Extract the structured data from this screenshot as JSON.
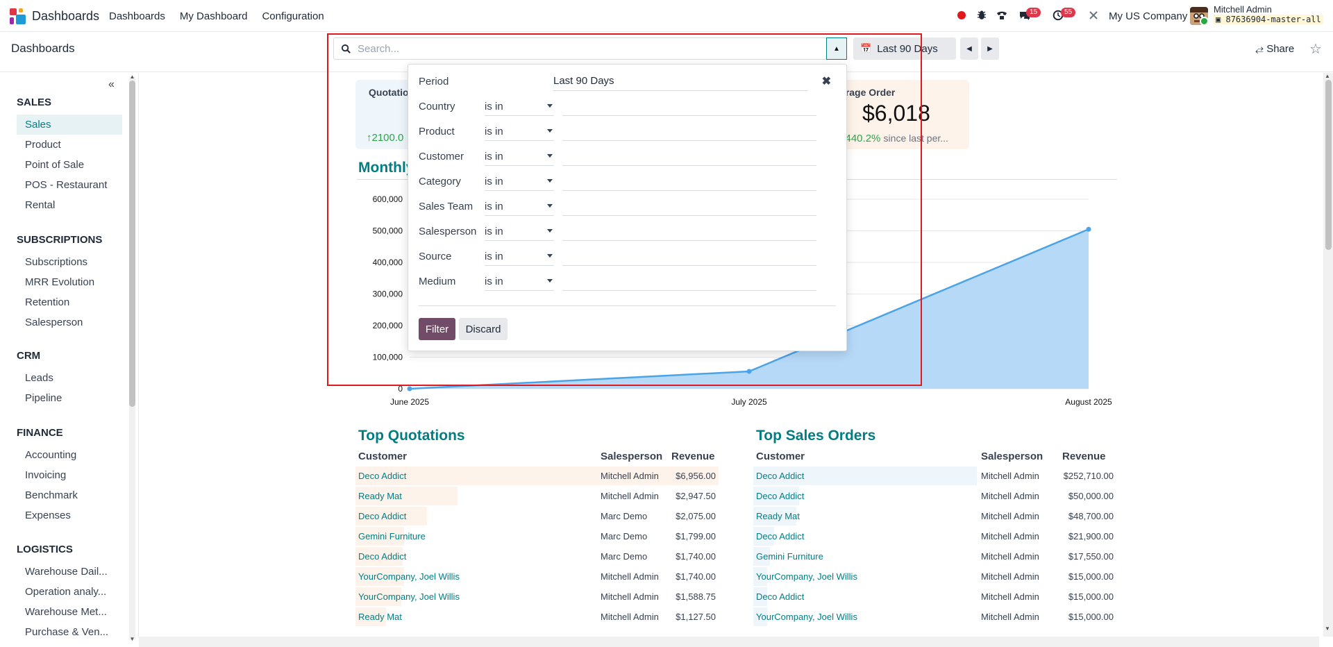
{
  "navbar": {
    "brand": "Dashboards",
    "menu": [
      "Dashboards",
      "My Dashboard",
      "Configuration"
    ],
    "messages_badge": "15",
    "activities_badge": "55",
    "company": "My US Company",
    "user_name": "Mitchell Admin",
    "database": "87636904-master-all"
  },
  "control_panel": {
    "breadcrumb": "Dashboards",
    "search_placeholder": "Search...",
    "period_label": "Last 90 Days",
    "share_label": "Share"
  },
  "sidebar": {
    "sections": [
      {
        "title": "SALES",
        "items": [
          "Sales",
          "Product",
          "Point of Sale",
          "POS - Restaurant",
          "Rental"
        ]
      },
      {
        "title": "SUBSCRIPTIONS",
        "items": [
          "Subscriptions",
          "MRR Evolution",
          "Retention",
          "Salesperson"
        ]
      },
      {
        "title": "CRM",
        "items": [
          "Leads",
          "Pipeline"
        ]
      },
      {
        "title": "FINANCE",
        "items": [
          "Accounting",
          "Invoicing",
          "Benchmark",
          "Expenses"
        ]
      },
      {
        "title": "LOGISTICS",
        "items": [
          "Warehouse Dail...",
          "Operation analy...",
          "Warehouse Met...",
          "Purchase & Ven..."
        ]
      }
    ],
    "active_item": "Sales"
  },
  "kpis": {
    "quotations": {
      "title": "Quotatio",
      "trend": "2100.0"
    },
    "average_order": {
      "title": "erage Order",
      "value": "$6,018",
      "trend": "440.2%",
      "since": "since last per..."
    }
  },
  "chart_title": "Monthly",
  "chart_data": {
    "type": "area",
    "x": [
      "June 2025",
      "July 2025",
      "August 2025"
    ],
    "series": [
      {
        "values": [
          0,
          55000,
          505000
        ]
      }
    ],
    "yticks": [
      "600,000",
      "500,000",
      "400,000",
      "300,000",
      "200,000",
      "100,000",
      "0"
    ],
    "ylim": [
      0,
      600000
    ],
    "grid": true,
    "colors": {
      "line": "#4ba3e8",
      "fill": "#b6d9f7"
    }
  },
  "top_quotations": {
    "title": "Top Quotations",
    "headers": [
      "Customer",
      "Salesperson",
      "Revenue"
    ],
    "rows": [
      {
        "customer": "Deco Addict",
        "salesperson": "Mitchell Admin",
        "revenue": "$6,956.00"
      },
      {
        "customer": "Ready Mat",
        "salesperson": "Mitchell Admin",
        "revenue": "$2,947.50"
      },
      {
        "customer": "Deco Addict",
        "salesperson": "Marc Demo",
        "revenue": "$2,075.00"
      },
      {
        "customer": "Gemini Furniture",
        "salesperson": "Marc Demo",
        "revenue": "$1,799.00"
      },
      {
        "customer": "Deco Addict",
        "salesperson": "Marc Demo",
        "revenue": "$1,740.00"
      },
      {
        "customer": "YourCompany, Joel Willis",
        "salesperson": "Mitchell Admin",
        "revenue": "$1,740.00"
      },
      {
        "customer": "YourCompany, Joel Willis",
        "salesperson": "Mitchell Admin",
        "revenue": "$1,588.75"
      },
      {
        "customer": "Ready Mat",
        "salesperson": "Mitchell Admin",
        "revenue": "$1,127.50"
      }
    ]
  },
  "top_sales_orders": {
    "title": "Top Sales Orders",
    "headers": [
      "Customer",
      "Salesperson",
      "Revenue"
    ],
    "rows": [
      {
        "customer": "Deco Addict",
        "salesperson": "Mitchell Admin",
        "revenue": "$252,710.00"
      },
      {
        "customer": "Deco Addict",
        "salesperson": "Mitchell Admin",
        "revenue": "$50,000.00"
      },
      {
        "customer": "Ready Mat",
        "salesperson": "Mitchell Admin",
        "revenue": "$48,700.00"
      },
      {
        "customer": "Deco Addict",
        "salesperson": "Mitchell Admin",
        "revenue": "$21,900.00"
      },
      {
        "customer": "Gemini Furniture",
        "salesperson": "Mitchell Admin",
        "revenue": "$17,550.00"
      },
      {
        "customer": "YourCompany, Joel Willis",
        "salesperson": "Mitchell Admin",
        "revenue": "$15,000.00"
      },
      {
        "customer": "Deco Addict",
        "salesperson": "Mitchell Admin",
        "revenue": "$15,000.00"
      },
      {
        "customer": "YourCompany, Joel Willis",
        "salesperson": "Mitchell Admin",
        "revenue": "$15,000.00"
      }
    ]
  },
  "filter_popover": {
    "period_label": "Period",
    "period_value": "Last 90 Days",
    "operator": "is in",
    "fields": [
      "Country",
      "Product",
      "Customer",
      "Category",
      "Sales Team",
      "Salesperson",
      "Source",
      "Medium"
    ],
    "filter_button": "Filter",
    "discard_button": "Discard"
  },
  "colors": {
    "accent": "#017e84",
    "primary_button": "#714b67",
    "highlight": "#e0191f"
  }
}
